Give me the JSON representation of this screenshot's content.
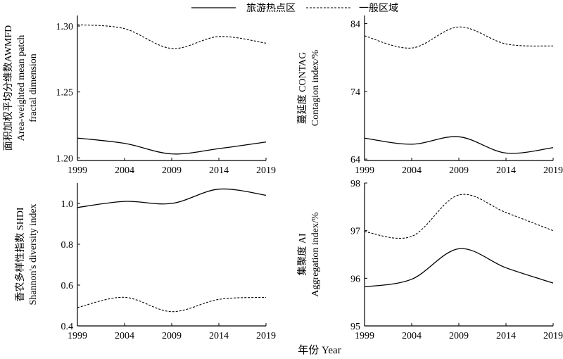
{
  "legend": {
    "solid_label": "旅游热点区",
    "dashed_label": "一般区域"
  },
  "xlabel": "年份 Year",
  "chart_data": [
    {
      "type": "line",
      "id": "awmfd",
      "ylabel_cn": "面积加权平均分维数AWMFD",
      "ylabel_en1": "Area-weighted mean patch",
      "ylabel_en2": "fractal dimension",
      "xticks": [
        "1999",
        "2004",
        "2009",
        "2014",
        "2019"
      ],
      "yticks": [
        "1.20",
        "1.25",
        "1.30"
      ],
      "ylim": [
        1.198,
        1.308
      ],
      "x": [
        1999,
        2004,
        2009,
        2014,
        2019
      ],
      "series": [
        {
          "name": "旅游热点区",
          "style": "solid",
          "values": [
            1.215,
            1.211,
            1.203,
            1.207,
            1.212
          ]
        },
        {
          "name": "一般区域",
          "style": "dashed",
          "values": [
            1.301,
            1.298,
            1.283,
            1.292,
            1.287
          ]
        }
      ]
    },
    {
      "type": "line",
      "id": "contag",
      "ylabel_cn": "蔓延度 CONTAG",
      "ylabel_en1": "Contagion index/%",
      "ylabel_en2": "",
      "xticks": [
        "1999",
        "2004",
        "2009",
        "2014",
        "2019"
      ],
      "yticks": [
        "64",
        "74",
        "84"
      ],
      "ylim": [
        63.8,
        85.2
      ],
      "x": [
        1999,
        2004,
        2009,
        2014,
        2019
      ],
      "series": [
        {
          "name": "旅游热点区",
          "style": "solid",
          "values": [
            67.1,
            66.2,
            67.3,
            64.9,
            65.7
          ]
        },
        {
          "name": "一般区域",
          "style": "dashed",
          "values": [
            82.2,
            80.4,
            83.5,
            81.0,
            80.7
          ]
        }
      ]
    },
    {
      "type": "line",
      "id": "shdi",
      "ylabel_cn": "香农多样性指数 SHDI",
      "ylabel_en1": "Shannon's diversity index",
      "ylabel_en2": "",
      "xticks": [
        "1999",
        "2004",
        "2009",
        "2014",
        "2019"
      ],
      "yticks": [
        "0.4",
        "0.6",
        "0.8",
        "1.0"
      ],
      "ylim": [
        0.4,
        1.1
      ],
      "x": [
        1999,
        2004,
        2009,
        2014,
        2019
      ],
      "series": [
        {
          "name": "旅游热点区",
          "style": "solid",
          "values": [
            0.98,
            1.01,
            1.0,
            1.07,
            1.04
          ]
        },
        {
          "name": "一般区域",
          "style": "dashed",
          "values": [
            0.49,
            0.54,
            0.47,
            0.53,
            0.54
          ]
        }
      ]
    },
    {
      "type": "line",
      "id": "ai",
      "ylabel_cn": "集聚度 AI",
      "ylabel_en1": "Aggregation index/%",
      "ylabel_en2": "",
      "xticks": [
        "1999",
        "2004",
        "2009",
        "2014",
        "2019"
      ],
      "yticks": [
        "95",
        "96",
        "97",
        "98"
      ],
      "ylim": [
        95.0,
        98.0
      ],
      "x": [
        1999,
        2004,
        2009,
        2014,
        2019
      ],
      "series": [
        {
          "name": "旅游热点区",
          "style": "solid",
          "values": [
            95.82,
            95.98,
            96.62,
            96.22,
            95.9
          ]
        },
        {
          "name": "一般区域",
          "style": "dashed",
          "values": [
            96.98,
            96.88,
            97.75,
            97.38,
            97.0
          ]
        }
      ]
    }
  ]
}
